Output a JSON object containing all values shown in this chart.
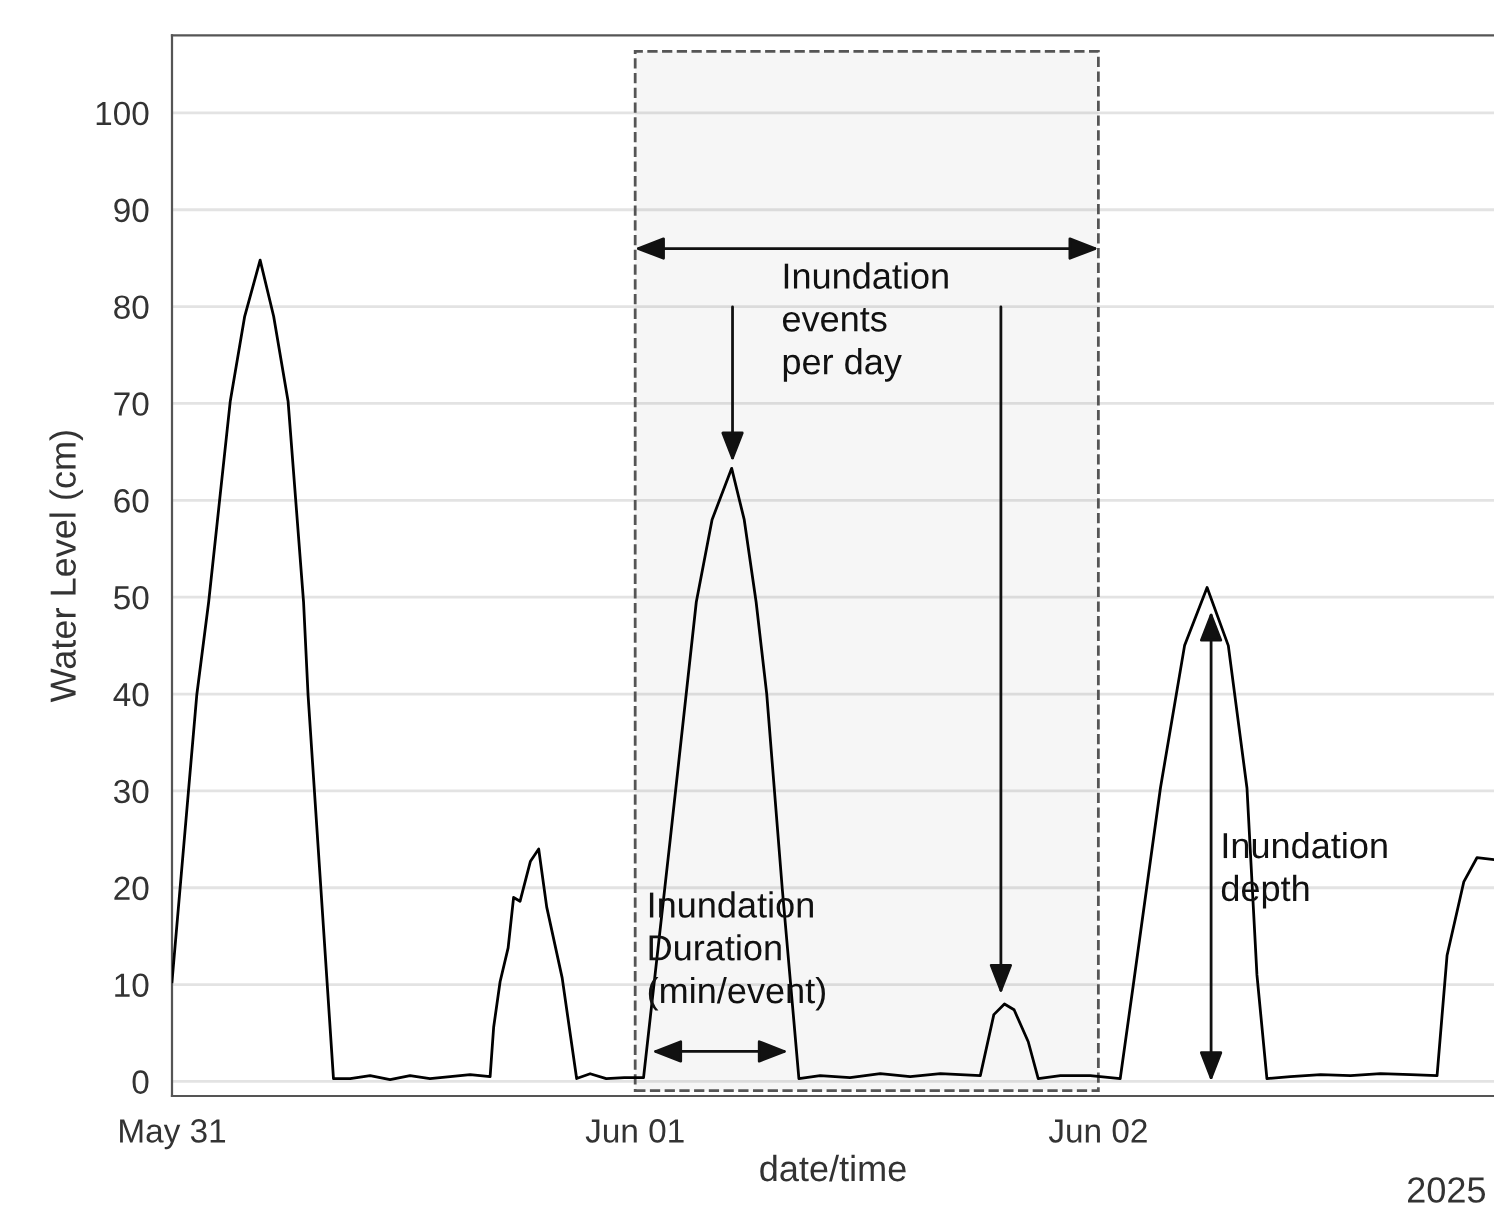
{
  "chart_data": {
    "type": "line",
    "xlabel": "date/time",
    "ylabel": "Water Level (cm)",
    "x": [
      "2025-05-31T00:00",
      "2025-05-31T01:17",
      "2025-05-31T01:54",
      "2025-05-31T03:01",
      "2025-05-31T03:46",
      "2025-05-31T04:34",
      "2025-05-31T05:16",
      "2025-05-31T06:01",
      "2025-05-31T06:49",
      "2025-05-31T07:03",
      "2025-05-31T08:22",
      "2025-05-31T09:14",
      "2025-05-31T10:16",
      "2025-05-31T11:18",
      "2025-05-31T12:20",
      "2025-05-31T13:22",
      "2025-05-31T14:25",
      "2025-05-31T15:27",
      "2025-05-31T16:29",
      "2025-05-31T16:40",
      "2025-05-31T17:00",
      "2025-05-31T17:25",
      "2025-05-31T17:42",
      "2025-05-31T18:02",
      "2025-05-31T18:34",
      "2025-05-31T19:00",
      "2025-05-31T19:25",
      "2025-05-31T20:13",
      "2025-05-31T20:58",
      "2025-05-31T21:40",
      "2025-05-31T22:30",
      "2025-05-31T23:26",
      "2025-06-01T00:26",
      "2025-06-01T01:49",
      "2025-06-01T03:10",
      "2025-06-01T03:59",
      "2025-06-01T05:00",
      "2025-06-01T05:39",
      "2025-06-01T06:16",
      "2025-06-01T06:49",
      "2025-06-01T07:37",
      "2025-06-01T08:29",
      "2025-06-01T09:35",
      "2025-06-01T11:08",
      "2025-06-01T12:42",
      "2025-06-01T14:15",
      "2025-06-01T15:49",
      "2025-06-01T17:53",
      "2025-06-01T18:35",
      "2025-06-01T19:08",
      "2025-06-01T19:38",
      "2025-06-01T20:22",
      "2025-06-01T20:53",
      "2025-06-01T22:02",
      "2025-06-01T23:35",
      "2025-06-02T01:08",
      "2025-06-02T01:50",
      "2025-06-02T03:13",
      "2025-06-02T04:28",
      "2025-06-02T05:38",
      "2025-06-02T06:44",
      "2025-06-02T07:42",
      "2025-06-02T08:13",
      "2025-06-02T08:44",
      "2025-06-02T09:57",
      "2025-06-02T11:31",
      "2025-06-02T13:04",
      "2025-06-02T14:37",
      "2025-06-02T16:11",
      "2025-06-02T17:33",
      "2025-06-02T18:04",
      "2025-06-02T18:56",
      "2025-06-02T19:37",
      "2025-06-02T20:30"
    ],
    "series": [
      {
        "color": "#000000",
        "values": [
          10.3,
          39.9,
          49.5,
          70.2,
          79,
          84.8,
          79,
          70.2,
          49.5,
          39.9,
          0.3,
          0.3,
          0.6,
          0.2,
          0.6,
          0.3,
          0.5,
          0.7,
          0.5,
          5.6,
          10.3,
          13.8,
          19,
          18.6,
          22.7,
          24,
          18,
          10.7,
          0.3,
          0.8,
          0.3,
          0.4,
          0.4,
          25,
          49.5,
          58,
          63.3,
          58,
          49.5,
          40,
          20,
          0.3,
          0.6,
          0.4,
          0.8,
          0.5,
          0.8,
          0.6,
          6.9,
          8.0,
          7.4,
          4.1,
          0.3,
          0.6,
          0.6,
          0.3,
          10.3,
          30.3,
          45,
          51,
          45,
          30.3,
          11,
          0.3,
          0.5,
          0.7,
          0.6,
          0.8,
          0.7,
          0.6,
          13,
          20.6,
          23.1,
          22.9
        ]
      }
    ],
    "xlim": [
      "2025-05-31T00:00",
      "2025-06-02T20:30"
    ],
    "ylim": [
      -1.5,
      108
    ],
    "xticks": [
      {
        "value": "2025-05-31",
        "label": "May 31"
      },
      {
        "value": "2025-06-01",
        "label": "Jun 01"
      },
      {
        "value": "2025-06-02",
        "label": "Jun 02"
      }
    ],
    "yticks": [
      0,
      10,
      20,
      30,
      40,
      50,
      60,
      70,
      80,
      90,
      100
    ],
    "grid": "y",
    "line_style": "solid",
    "marker": "none",
    "bands": [
      {
        "axis": "x",
        "from": "2025-06-01",
        "to": "2025-06-02",
        "color": "#555555"
      }
    ],
    "annotations": [
      "Inundation\nevents\nper day",
      "Inundation\nDuration\n(min/event)",
      "Inundation\ndepth",
      "2025"
    ]
  }
}
